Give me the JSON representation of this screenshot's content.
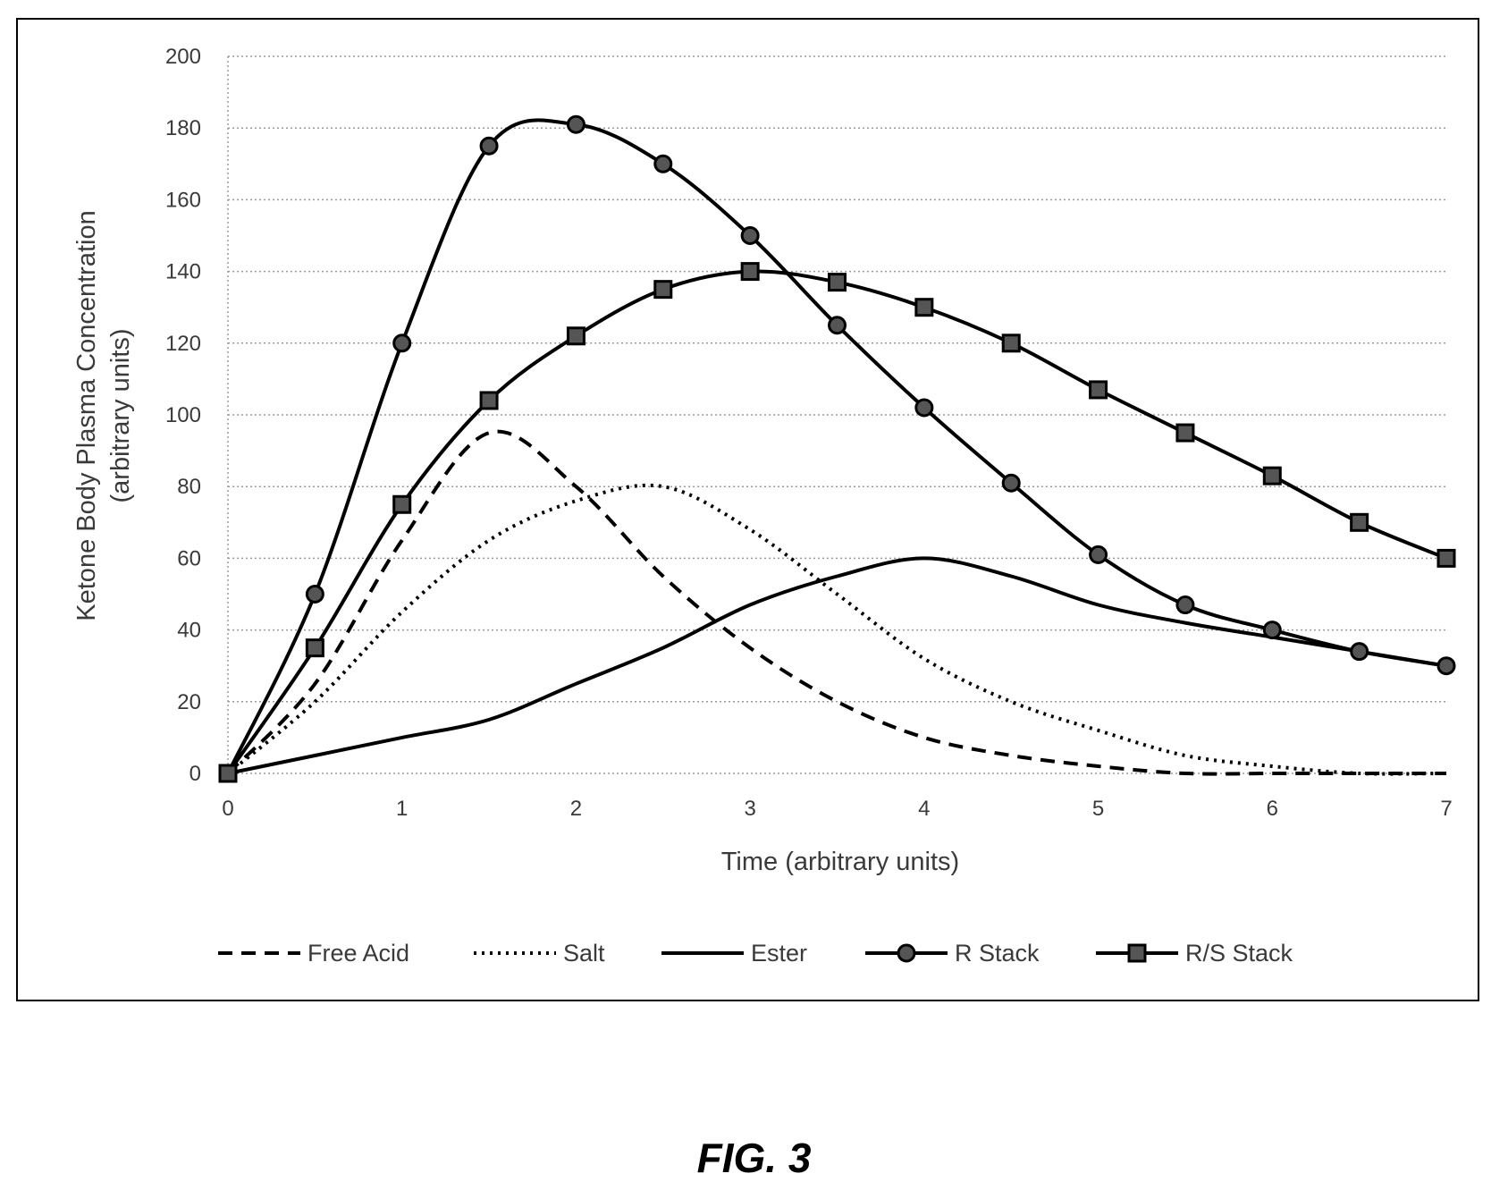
{
  "figure": {
    "caption": "FIG. 3"
  },
  "chart_data": {
    "type": "line",
    "title": "",
    "xlabel": "Time (arbitrary units)",
    "ylabel_lines": [
      "Ketone Body Plasma Concentration",
      "(arbitrary units)"
    ],
    "xlim": [
      0,
      7
    ],
    "ylim": [
      0,
      200
    ],
    "x_ticks": [
      0,
      1,
      2,
      3,
      4,
      5,
      6,
      7
    ],
    "y_ticks": [
      0,
      20,
      40,
      60,
      80,
      100,
      120,
      140,
      160,
      180,
      200
    ],
    "grid": "horizontal dotted",
    "legend_position": "bottom",
    "series": [
      {
        "name": "Free Acid",
        "line": "dashed",
        "marker": "none",
        "color": "#000000",
        "x": [
          0,
          0.5,
          1,
          1.5,
          2,
          2.5,
          3,
          3.5,
          4,
          4.5,
          5,
          5.5,
          6,
          6.5,
          7
        ],
        "y": [
          0,
          25,
          65,
          95,
          80,
          55,
          35,
          20,
          10,
          5,
          2,
          0,
          0,
          0,
          0
        ]
      },
      {
        "name": "Salt",
        "line": "dotted",
        "marker": "none",
        "color": "#000000",
        "x": [
          0,
          0.5,
          1,
          1.5,
          2,
          2.5,
          3,
          3.5,
          4,
          4.5,
          5,
          5.5,
          6,
          6.5,
          7
        ],
        "y": [
          0,
          20,
          45,
          65,
          76,
          80,
          68,
          50,
          32,
          20,
          12,
          5,
          2,
          0,
          0
        ]
      },
      {
        "name": "Ester",
        "line": "solid",
        "marker": "none",
        "color": "#000000",
        "x": [
          0,
          0.5,
          1,
          1.5,
          2,
          2.5,
          3,
          3.5,
          4,
          4.5,
          5,
          5.5,
          6,
          6.5,
          7
        ],
        "y": [
          0,
          5,
          10,
          15,
          25,
          35,
          47,
          55,
          60,
          55,
          47,
          42,
          38,
          34,
          30
        ]
      },
      {
        "name": "R Stack",
        "line": "solid",
        "marker": "circle",
        "color": "#000000",
        "x": [
          0,
          0.5,
          1,
          1.5,
          2,
          2.5,
          3,
          3.5,
          4,
          4.5,
          5,
          5.5,
          6,
          6.5,
          7
        ],
        "y": [
          0,
          50,
          120,
          175,
          181,
          170,
          150,
          125,
          102,
          81,
          61,
          47,
          40,
          34,
          30
        ]
      },
      {
        "name": "R/S Stack",
        "line": "solid",
        "marker": "square",
        "color": "#000000",
        "x": [
          0,
          0.5,
          1,
          1.5,
          2,
          2.5,
          3,
          3.5,
          4,
          4.5,
          5,
          5.5,
          6,
          6.5,
          7
        ],
        "y": [
          0,
          35,
          75,
          104,
          122,
          135,
          140,
          137,
          130,
          120,
          107,
          95,
          83,
          70,
          60
        ]
      }
    ]
  }
}
